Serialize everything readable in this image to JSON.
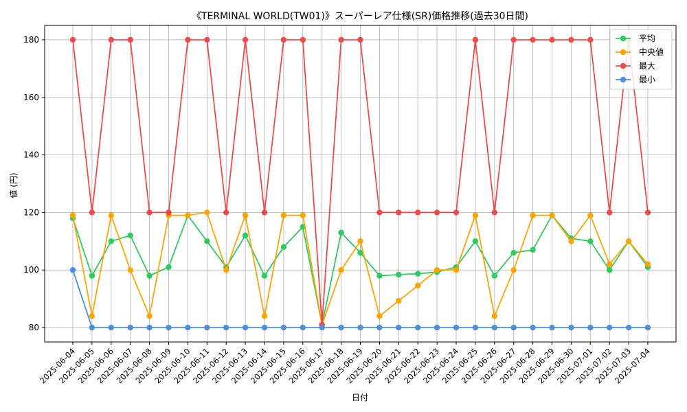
{
  "chart_data": {
    "type": "line",
    "title": "《TERMINAL WORLD(TW01)》スーパーレア仕様(SR)価格推移(過去30日間)",
    "xlabel": "日付",
    "ylabel": "値 (円)",
    "ylim": [
      75,
      185
    ],
    "yticks": [
      80,
      100,
      120,
      140,
      160,
      180
    ],
    "grid": true,
    "legend_position": "top-right",
    "categories": [
      "2025-06-04",
      "2025-06-05",
      "2025-06-06",
      "2025-06-07",
      "2025-06-08",
      "2025-06-09",
      "2025-06-10",
      "2025-06-11",
      "2025-06-12",
      "2025-06-13",
      "2025-06-14",
      "2025-06-15",
      "2025-06-16",
      "2025-06-17",
      "2025-06-18",
      "2025-06-19",
      "2025-06-20",
      "2025-06-21",
      "2025-06-22",
      "2025-06-23",
      "2025-06-24",
      "2025-06-25",
      "2025-06-26",
      "2025-06-27",
      "2025-06-28",
      "2025-06-29",
      "2025-06-30",
      "2025-07-01",
      "2025-07-02",
      "2025-07-03",
      "2025-07-04"
    ],
    "series": [
      {
        "name": "平均",
        "color": "#2ecc5f",
        "values": [
          118,
          98,
          110,
          112,
          98,
          101,
          119,
          110,
          101,
          112,
          98,
          108,
          115,
          81,
          113,
          106,
          98,
          98.4,
          98.7,
          99.3,
          101,
          110,
          98,
          106,
          107,
          119,
          111,
          110,
          100,
          110,
          101
        ]
      },
      {
        "name": "中央値",
        "color": "#ffa500",
        "values": [
          119,
          84,
          119,
          100,
          84,
          119,
          119,
          120,
          100,
          119,
          84,
          119,
          119,
          81,
          100,
          110,
          84,
          89.3,
          94.6,
          100,
          100,
          119,
          84,
          100,
          119,
          119,
          110,
          119,
          102,
          110,
          102
        ]
      },
      {
        "name": "最大",
        "color": "#f04b4b",
        "values": [
          180,
          120,
          180,
          180,
          120,
          120,
          180,
          180,
          120,
          180,
          120,
          180,
          180,
          81,
          180,
          180,
          120,
          120,
          120,
          120,
          120,
          180,
          120,
          180,
          180,
          180,
          180,
          180,
          120,
          180,
          120
        ]
      },
      {
        "name": "最小",
        "color": "#4a90e2",
        "values": [
          100,
          80,
          80,
          80,
          80,
          80,
          80,
          80,
          80,
          80,
          80,
          80,
          80,
          80,
          80,
          80,
          80,
          80,
          80,
          80,
          80,
          80,
          80,
          80,
          80,
          80,
          80,
          80,
          80,
          80,
          80
        ]
      }
    ]
  }
}
